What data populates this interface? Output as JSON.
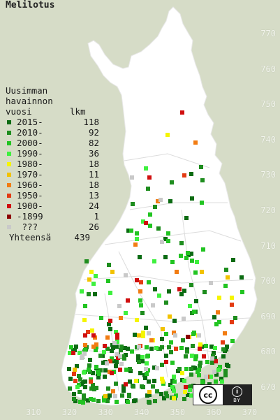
{
  "title": "Melilotus",
  "map_axes": {
    "y_labels": [
      "770",
      "760",
      "750",
      "740",
      "730",
      "720",
      "710",
      "700",
      "690",
      "680",
      "670"
    ],
    "x_labels": [
      "310",
      "320",
      "330",
      "340",
      "350",
      "360",
      "370"
    ]
  },
  "legend": {
    "heading_line1": "Uusimman",
    "heading_line2": "havainnon",
    "heading_line3": "vuosi",
    "count_header": "lkm",
    "entries": [
      {
        "label": "2015-",
        "count": "118",
        "color": "#0b6b12"
      },
      {
        "label": "2010-",
        "count": "92",
        "color": "#1e8d1e"
      },
      {
        "label": "2000-",
        "count": "82",
        "color": "#21c421"
      },
      {
        "label": "1990-",
        "count": "36",
        "color": "#3ef03e"
      },
      {
        "label": "1980-",
        "count": "18",
        "color": "#f5f500"
      },
      {
        "label": "1970-",
        "count": "11",
        "color": "#f2c200"
      },
      {
        "label": "1960-",
        "count": "18",
        "color": "#f27c12"
      },
      {
        "label": "1950-",
        "count": "13",
        "color": "#e33a12"
      },
      {
        "label": "1900-",
        "count": "24",
        "color": "#d00e0e"
      },
      {
        "label": "-1899",
        "count": "1",
        "color": "#8c0000"
      },
      {
        "label": " ???",
        "count": "26",
        "color": "#c9c9c9"
      }
    ],
    "total_label": "Yhteensä",
    "total_count": "439"
  },
  "license": {
    "cc_label": "cc",
    "by_icon": "i",
    "by_label": "BY"
  },
  "colors": {
    "background": "#d6dcc7",
    "land": "#ffffff",
    "border_lines": "#cfcfcf"
  }
}
